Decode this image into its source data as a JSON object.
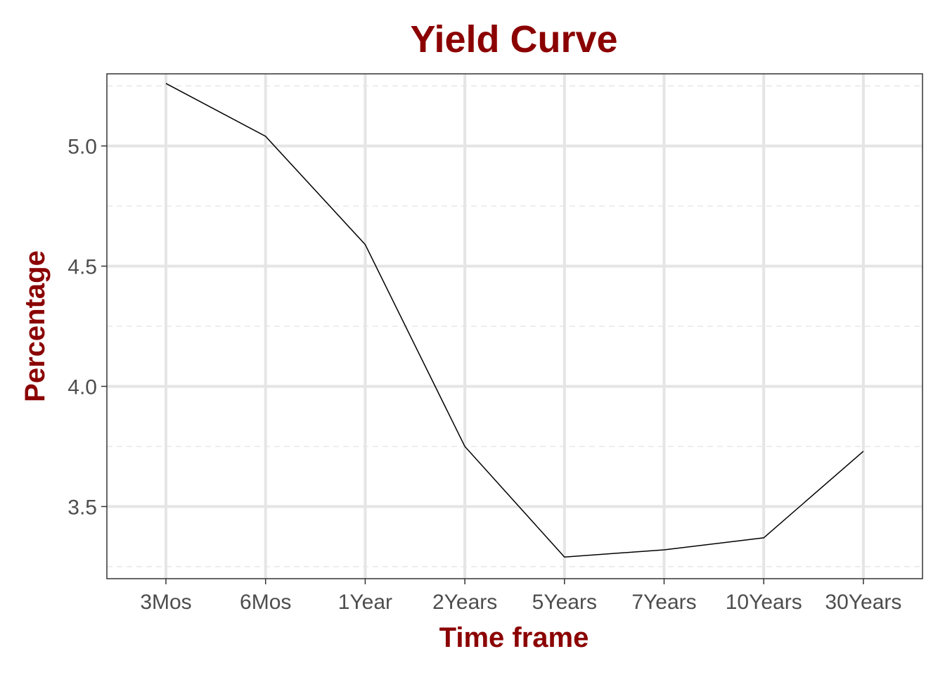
{
  "chart_data": {
    "type": "line",
    "title": "Yield Curve",
    "xlabel": "Time frame",
    "ylabel": "Percentage",
    "categories": [
      "3Mos",
      "6Mos",
      "1Year",
      "2Years",
      "5Years",
      "7Years",
      "10Years",
      "30Years"
    ],
    "values": [
      5.26,
      5.04,
      4.59,
      3.75,
      3.29,
      3.32,
      3.37,
      3.73
    ],
    "ylim": [
      3.2,
      5.3
    ],
    "yticks": [
      3.5,
      4.0,
      4.5,
      5.0
    ],
    "ytick_labels": [
      "3.5",
      "4.0",
      "4.5",
      "5.0"
    ],
    "y_minor_ticks": [
      3.25,
      3.75,
      4.25,
      4.75,
      5.25
    ],
    "grid": true,
    "line_color": "#000000",
    "title_color": "#8b0000"
  }
}
